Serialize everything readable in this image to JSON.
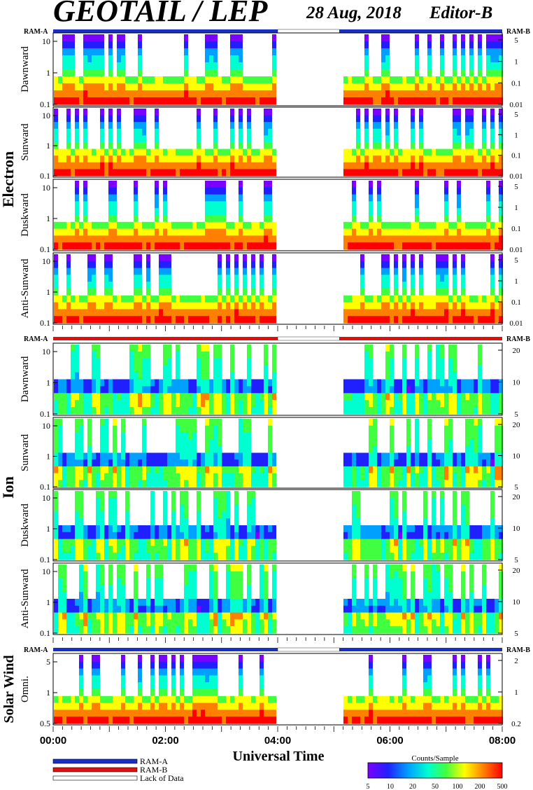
{
  "header": {
    "title": "GEOTAIL / LEP",
    "date": "28 Aug, 2018",
    "editor": "Editor-B"
  },
  "sections": {
    "electron": "Electron",
    "ion": "Ion",
    "solar_wind": "Solar Wind"
  },
  "ram": {
    "left": "RAM-A",
    "right": "RAM-B"
  },
  "xaxis": {
    "label": "Universal Time",
    "ticks": [
      "00:00",
      "02:00",
      "04:00",
      "06:00",
      "08:00"
    ]
  },
  "legend": {
    "ram_a": "RAM-A",
    "ram_b": "RAM-B",
    "lack": "Lack of Data",
    "colorbar_title": "Counts/Sample",
    "colorbar_ticks": [
      "5",
      "10",
      "20",
      "50",
      "100",
      "200",
      "500"
    ]
  },
  "colors": {
    "ram_a": "#1a2fc8",
    "ram_b": "#e01010",
    "colorbar": [
      "#7a00ff",
      "#2020ff",
      "#00a0ff",
      "#00ffd0",
      "#40ff40",
      "#ffff00",
      "#ff8000",
      "#ff0000"
    ]
  },
  "chart_data": {
    "type": "heatmap",
    "x_range_hours": [
      0,
      8
    ],
    "data_gap_hours": [
      4.0,
      5.1
    ],
    "panels": [
      {
        "group": "electron",
        "label": "Dawnward",
        "ramp": "ram_a",
        "left_ticks": [
          "10",
          "1",
          "0.1"
        ],
        "right_ticks": [
          "5",
          "1",
          "0.1",
          "0.01"
        ]
      },
      {
        "group": "electron",
        "label": "Sunward",
        "left_ticks": [
          "10",
          "1",
          "0.1"
        ],
        "right_ticks": [
          "5",
          "1",
          "0.1",
          "0.01"
        ]
      },
      {
        "group": "electron",
        "label": "Duskward",
        "left_ticks": [
          "10",
          "1",
          "0.1"
        ],
        "right_ticks": [
          "5",
          "1",
          "0.1",
          "0.01"
        ]
      },
      {
        "group": "electron",
        "label": "Anti-Sunward",
        "left_ticks": [
          "10",
          "1",
          "0.1"
        ],
        "right_ticks": [
          "5",
          "1",
          "0.1",
          "0.01"
        ]
      },
      {
        "group": "ion",
        "label": "Dawnward",
        "ramp": "ram_b",
        "left_ticks": [
          "10",
          "1",
          "0.1"
        ],
        "right_ticks": [
          "20",
          "10",
          "5"
        ]
      },
      {
        "group": "ion",
        "label": "Sunward",
        "left_ticks": [
          "10",
          "1",
          "0.1"
        ],
        "right_ticks": [
          "20",
          "10",
          "5"
        ]
      },
      {
        "group": "ion",
        "label": "Duskward",
        "left_ticks": [
          "10",
          "1",
          "0.1"
        ],
        "right_ticks": [
          "20",
          "10",
          "5"
        ]
      },
      {
        "group": "ion",
        "label": "Anti-Sunward",
        "left_ticks": [
          "10",
          "1",
          "0.1"
        ],
        "right_ticks": [
          "20",
          "10",
          "5"
        ]
      },
      {
        "group": "solar_wind",
        "label": "Omni.",
        "ramp": "ram_a",
        "left_ticks": [
          "5",
          "1",
          "0.5"
        ],
        "right_ticks": [
          "2",
          "1",
          "0.2"
        ]
      }
    ]
  }
}
